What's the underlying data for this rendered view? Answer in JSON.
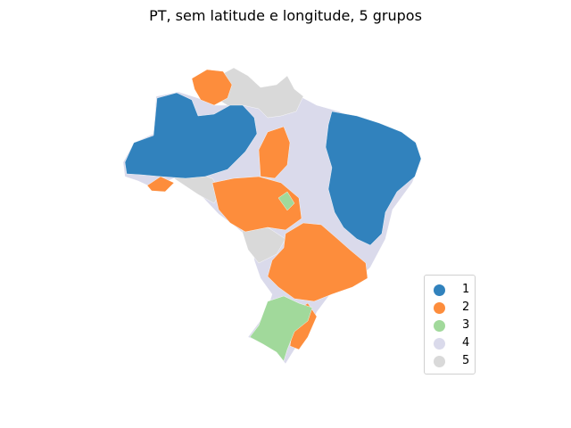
{
  "title": "PT, sem latitude e longitude, 5 grupos",
  "legend": {
    "items": [
      {
        "label": "1",
        "color": "#3182bd"
      },
      {
        "label": "2",
        "color": "#fd8d3c"
      },
      {
        "label": "3",
        "color": "#a1d99b"
      },
      {
        "label": "4",
        "color": "#dadaeb"
      },
      {
        "label": "5",
        "color": "#d9d9d9"
      }
    ]
  },
  "map": {
    "subject": "Brazil municipalities choropleth",
    "region_colors": {
      "group1": "#3182bd",
      "group2": "#fd8d3c",
      "group3": "#a1d99b",
      "group4": "#dadaeb",
      "group5": "#d9d9d9"
    }
  }
}
